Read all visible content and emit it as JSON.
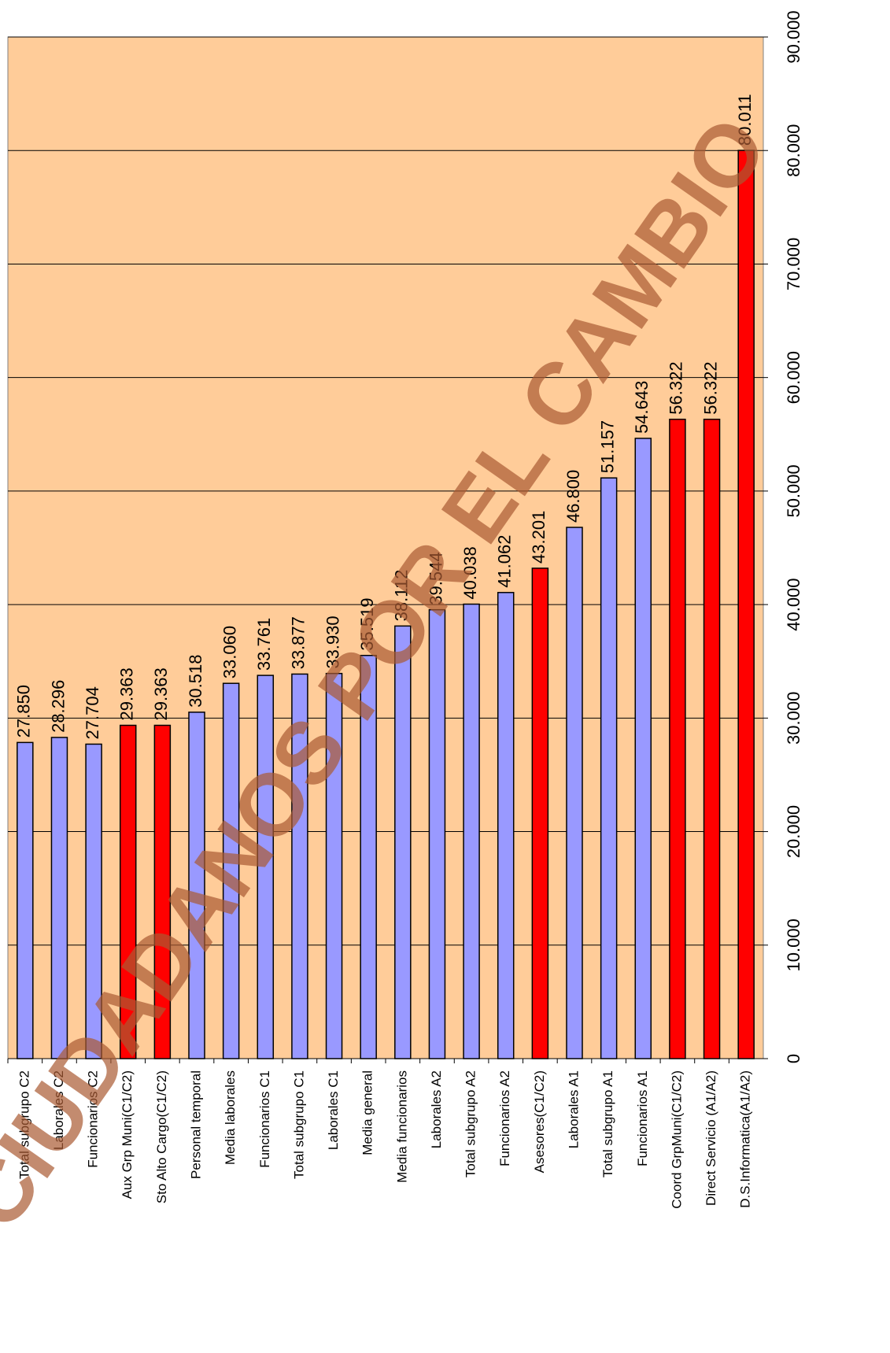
{
  "chart_data": {
    "type": "bar",
    "categories": [
      "Total subgrupo C2",
      "Laborales C2",
      "Funcionarios C2",
      "Aux Grp Muni(C1/C2)",
      "Sto Alto Cargo(C1/C2)",
      "Personal temporal",
      "Media laborales",
      "Funcionarios C1",
      "Total subgrupo C1",
      "Laborales C1",
      "Media general",
      "Media funcionarios",
      "Laborales A2",
      "Total subgrupo A2",
      "Funcionarios A2",
      "Asesores(C1/C2)",
      "Laborales A1",
      "Total subgrupo A1",
      "Funcionarios A1",
      "Coord GrpMuni(C1/C2)",
      "Direct Servicio (A1/A2)",
      "D.S.Informatica(A1/A2)"
    ],
    "values": [
      27850,
      28296,
      27704,
      29363,
      29363,
      30518,
      33060,
      33761,
      33877,
      33930,
      35519,
      38112,
      39544,
      40038,
      41062,
      43201,
      46800,
      51157,
      54643,
      56322,
      56322,
      80011
    ],
    "value_labels": [
      "27.850",
      "28.296",
      "27.704",
      "29.363",
      "29.363",
      "30.518",
      "33.060",
      "33.761",
      "33.877",
      "33.930",
      "35.519",
      "38.112",
      "39.544",
      "40.038",
      "41.062",
      "43.201",
      "46.800",
      "51.157",
      "54.643",
      "56.322",
      "56.322",
      "80.011"
    ],
    "colors": [
      "#9999ff",
      "#9999ff",
      "#9999ff",
      "#ff0000",
      "#ff0000",
      "#9999ff",
      "#9999ff",
      "#9999ff",
      "#9999ff",
      "#9999ff",
      "#9999ff",
      "#9999ff",
      "#9999ff",
      "#9999ff",
      "#9999ff",
      "#ff0000",
      "#9999ff",
      "#9999ff",
      "#9999ff",
      "#ff0000",
      "#ff0000",
      "#ff0000"
    ],
    "ylim": [
      0,
      90000
    ],
    "yticks": [
      0,
      {
        "value": 10000,
        "label": "10.000"
      },
      {
        "value": 20000,
        "label": "20.000"
      },
      {
        "value": 30000,
        "label": "30.000"
      },
      {
        "value": 40000,
        "label": "40.000"
      },
      {
        "value": 50000,
        "label": "50.000"
      },
      {
        "value": 60000,
        "label": "60.000"
      },
      {
        "value": 70000,
        "label": "70.000"
      },
      {
        "value": 80000,
        "label": "80.000"
      },
      {
        "value": 90000,
        "label": "90.000"
      }
    ],
    "grid": true,
    "background": "#ffcc99",
    "watermark": "CIUDADANOS POR EL CAMBIO"
  }
}
